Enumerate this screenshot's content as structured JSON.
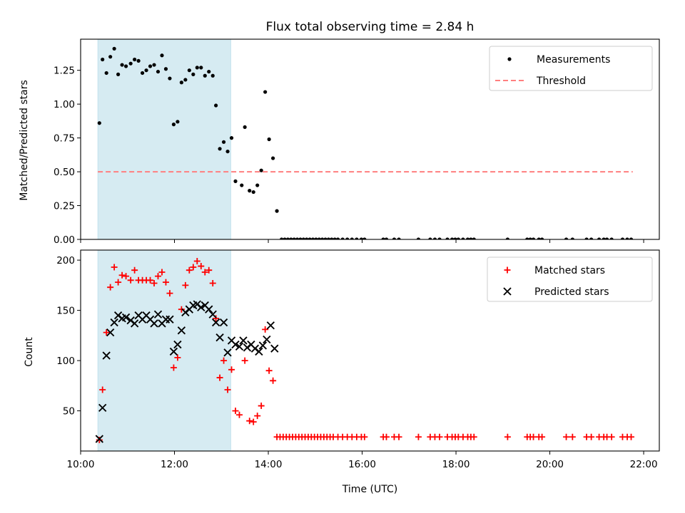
{
  "chart_data": [
    {
      "type": "scatter",
      "title": "Flux total observing time = 2.84 h",
      "xlabel": "",
      "ylabel": "Matched/Predicted stars",
      "xlim": [
        "10:00",
        "22:20"
      ],
      "ylim": [
        0,
        1.48
      ],
      "yticks": [
        "0.00",
        "0.25",
        "0.50",
        "0.75",
        "1.00",
        "1.25"
      ],
      "legend_position": "top-right",
      "highlight_span": {
        "from": "10:22",
        "to": "13:12",
        "color": "#add8e6"
      },
      "series": [
        {
          "name": "Measurements",
          "marker": "dot",
          "color": "#000000",
          "points": [
            [
              "10:24",
              0.86
            ],
            [
              "10:28",
              1.33
            ],
            [
              "10:33",
              1.23
            ],
            [
              "10:38",
              1.35
            ],
            [
              "10:43",
              1.41
            ],
            [
              "10:48",
              1.22
            ],
            [
              "10:53",
              1.29
            ],
            [
              "10:58",
              1.28
            ],
            [
              "11:04",
              1.3
            ],
            [
              "11:09",
              1.33
            ],
            [
              "11:14",
              1.32
            ],
            [
              "11:19",
              1.23
            ],
            [
              "11:24",
              1.25
            ],
            [
              "11:29",
              1.28
            ],
            [
              "11:34",
              1.29
            ],
            [
              "11:39",
              1.24
            ],
            [
              "11:44",
              1.36
            ],
            [
              "11:49",
              1.26
            ],
            [
              "11:54",
              1.19
            ],
            [
              "11:59",
              0.85
            ],
            [
              "12:04",
              0.87
            ],
            [
              "12:09",
              1.16
            ],
            [
              "12:14",
              1.18
            ],
            [
              "12:19",
              1.25
            ],
            [
              "12:24",
              1.22
            ],
            [
              "12:29",
              1.27
            ],
            [
              "12:34",
              1.27
            ],
            [
              "12:39",
              1.21
            ],
            [
              "12:44",
              1.24
            ],
            [
              "12:49",
              1.21
            ],
            [
              "12:53",
              0.99
            ],
            [
              "12:58",
              0.67
            ],
            [
              "13:03",
              0.72
            ],
            [
              "13:08",
              0.65
            ],
            [
              "13:13",
              0.75
            ],
            [
              "13:18",
              0.43
            ],
            [
              "13:26",
              0.4
            ],
            [
              "13:30",
              0.83
            ],
            [
              "13:36",
              0.36
            ],
            [
              "13:41",
              0.35
            ],
            [
              "13:46",
              0.4
            ],
            [
              "13:51",
              0.51
            ],
            [
              "13:56",
              1.09
            ],
            [
              "14:01",
              0.74
            ],
            [
              "14:06",
              0.6
            ],
            [
              "14:11",
              0.21
            ],
            [
              "14:17",
              0
            ],
            [
              "14:21",
              0
            ],
            [
              "14:25",
              0
            ],
            [
              "14:29",
              0
            ],
            [
              "14:33",
              0
            ],
            [
              "14:37",
              0
            ],
            [
              "14:41",
              0
            ],
            [
              "14:45",
              0
            ],
            [
              "14:49",
              0
            ],
            [
              "14:53",
              0
            ],
            [
              "14:57",
              0
            ],
            [
              "15:01",
              0
            ],
            [
              "15:05",
              0
            ],
            [
              "15:09",
              0
            ],
            [
              "15:13",
              0
            ],
            [
              "15:17",
              0
            ],
            [
              "15:21",
              0
            ],
            [
              "15:25",
              0
            ],
            [
              "15:29",
              0
            ],
            [
              "15:35",
              0
            ],
            [
              "15:41",
              0
            ],
            [
              "15:47",
              0
            ],
            [
              "15:53",
              0
            ],
            [
              "15:59",
              0
            ],
            [
              "16:03",
              0
            ],
            [
              "16:27",
              0
            ],
            [
              "16:31",
              0
            ],
            [
              "16:41",
              0
            ],
            [
              "16:47",
              0
            ],
            [
              "17:12",
              0
            ],
            [
              "17:27",
              0
            ],
            [
              "17:33",
              0
            ],
            [
              "17:39",
              0
            ],
            [
              "17:49",
              0
            ],
            [
              "17:55",
              0
            ],
            [
              "17:59",
              0
            ],
            [
              "18:03",
              0
            ],
            [
              "18:09",
              0
            ],
            [
              "18:15",
              0
            ],
            [
              "18:19",
              0
            ],
            [
              "18:23",
              0
            ],
            [
              "19:06",
              0
            ],
            [
              "19:31",
              0
            ],
            [
              "19:35",
              0
            ],
            [
              "19:39",
              0
            ],
            [
              "19:46",
              0
            ],
            [
              "19:50",
              0
            ],
            [
              "20:21",
              0
            ],
            [
              "20:29",
              0
            ],
            [
              "20:47",
              0
            ],
            [
              "20:53",
              0
            ],
            [
              "21:03",
              0
            ],
            [
              "21:09",
              0
            ],
            [
              "21:13",
              0
            ],
            [
              "21:19",
              0
            ],
            [
              "21:33",
              0
            ],
            [
              "21:39",
              0
            ],
            [
              "21:44",
              0
            ]
          ]
        },
        {
          "name": "Threshold",
          "marker": "dashed-line",
          "color": "#ff7f7f",
          "points": [
            [
              "10:22",
              0.5
            ],
            [
              "21:46",
              0.5
            ]
          ]
        }
      ]
    },
    {
      "type": "scatter",
      "title": "",
      "xlabel": "Time (UTC)",
      "ylabel": "Count",
      "xlim": [
        "10:00",
        "22:20"
      ],
      "ylim": [
        10,
        210
      ],
      "xticks": [
        "10:00",
        "12:00",
        "14:00",
        "16:00",
        "18:00",
        "20:00",
        "22:00"
      ],
      "yticks": [
        "50",
        "100",
        "150",
        "200"
      ],
      "legend_position": "top-right",
      "highlight_span": {
        "from": "10:22",
        "to": "13:12",
        "color": "#add8e6"
      },
      "series": [
        {
          "name": "Matched stars",
          "marker": "plus",
          "color": "#ff0000",
          "points": [
            [
              "10:24",
              21
            ],
            [
              "10:28",
              71
            ],
            [
              "10:33",
              128
            ],
            [
              "10:38",
              173
            ],
            [
              "10:43",
              193
            ],
            [
              "10:48",
              178
            ],
            [
              "10:53",
              185
            ],
            [
              "10:58",
              184
            ],
            [
              "11:04",
              180
            ],
            [
              "11:09",
              190
            ],
            [
              "11:14",
              180
            ],
            [
              "11:19",
              180
            ],
            [
              "11:24",
              180
            ],
            [
              "11:29",
              180
            ],
            [
              "11:34",
              177
            ],
            [
              "11:39",
              184
            ],
            [
              "11:44",
              188
            ],
            [
              "11:49",
              178
            ],
            [
              "11:54",
              167
            ],
            [
              "11:59",
              93
            ],
            [
              "12:04",
              103
            ],
            [
              "12:09",
              151
            ],
            [
              "12:14",
              175
            ],
            [
              "12:19",
              190
            ],
            [
              "12:24",
              193
            ],
            [
              "12:29",
              199
            ],
            [
              "12:34",
              194
            ],
            [
              "12:39",
              188
            ],
            [
              "12:44",
              190
            ],
            [
              "12:49",
              177
            ],
            [
              "12:53",
              142
            ],
            [
              "12:58",
              83
            ],
            [
              "13:03",
              100
            ],
            [
              "13:08",
              71
            ],
            [
              "13:13",
              91
            ],
            [
              "13:18",
              50
            ],
            [
              "13:23",
              46
            ],
            [
              "13:30",
              100
            ],
            [
              "13:36",
              40
            ],
            [
              "13:41",
              39
            ],
            [
              "13:46",
              45
            ],
            [
              "13:51",
              55
            ],
            [
              "13:56",
              131
            ],
            [
              "14:01",
              90
            ],
            [
              "14:06",
              80
            ],
            [
              "14:11",
              24
            ],
            [
              "14:15",
              24
            ],
            [
              "14:19",
              24
            ],
            [
              "14:23",
              24
            ],
            [
              "14:27",
              24
            ],
            [
              "14:31",
              24
            ],
            [
              "14:35",
              24
            ],
            [
              "14:39",
              24
            ],
            [
              "14:43",
              24
            ],
            [
              "14:47",
              24
            ],
            [
              "14:51",
              24
            ],
            [
              "14:55",
              24
            ],
            [
              "14:59",
              24
            ],
            [
              "15:03",
              24
            ],
            [
              "15:07",
              24
            ],
            [
              "15:11",
              24
            ],
            [
              "15:15",
              24
            ],
            [
              "15:19",
              24
            ],
            [
              "15:23",
              24
            ],
            [
              "15:29",
              24
            ],
            [
              "15:35",
              24
            ],
            [
              "15:41",
              24
            ],
            [
              "15:47",
              24
            ],
            [
              "15:53",
              24
            ],
            [
              "15:59",
              24
            ],
            [
              "16:03",
              24
            ],
            [
              "16:27",
              24
            ],
            [
              "16:31",
              24
            ],
            [
              "16:41",
              24
            ],
            [
              "16:47",
              24
            ],
            [
              "17:12",
              24
            ],
            [
              "17:27",
              24
            ],
            [
              "17:33",
              24
            ],
            [
              "17:39",
              24
            ],
            [
              "17:49",
              24
            ],
            [
              "17:55",
              24
            ],
            [
              "17:59",
              24
            ],
            [
              "18:03",
              24
            ],
            [
              "18:09",
              24
            ],
            [
              "18:15",
              24
            ],
            [
              "18:19",
              24
            ],
            [
              "18:23",
              24
            ],
            [
              "19:06",
              24
            ],
            [
              "19:31",
              24
            ],
            [
              "19:35",
              24
            ],
            [
              "19:39",
              24
            ],
            [
              "19:46",
              24
            ],
            [
              "19:50",
              24
            ],
            [
              "20:21",
              24
            ],
            [
              "20:29",
              24
            ],
            [
              "20:47",
              24
            ],
            [
              "20:53",
              24
            ],
            [
              "21:03",
              24
            ],
            [
              "21:09",
              24
            ],
            [
              "21:13",
              24
            ],
            [
              "21:19",
              24
            ],
            [
              "21:33",
              24
            ],
            [
              "21:39",
              24
            ],
            [
              "21:44",
              24
            ]
          ]
        },
        {
          "name": "Predicted stars",
          "marker": "x",
          "color": "#000000",
          "points": [
            [
              "10:24",
              22
            ],
            [
              "10:28",
              53
            ],
            [
              "10:33",
              105
            ],
            [
              "10:38",
              128
            ],
            [
              "10:43",
              138
            ],
            [
              "10:48",
              145
            ],
            [
              "10:53",
              142
            ],
            [
              "10:58",
              143
            ],
            [
              "11:04",
              140
            ],
            [
              "11:09",
              137
            ],
            [
              "11:14",
              145
            ],
            [
              "11:19",
              141
            ],
            [
              "11:24",
              145
            ],
            [
              "11:29",
              141
            ],
            [
              "11:34",
              137
            ],
            [
              "11:39",
              146
            ],
            [
              "11:44",
              137
            ],
            [
              "11:49",
              141
            ],
            [
              "11:54",
              141
            ],
            [
              "11:59",
              109
            ],
            [
              "12:04",
              116
            ],
            [
              "12:09",
              130
            ],
            [
              "12:14",
              148
            ],
            [
              "12:19",
              151
            ],
            [
              "12:24",
              155
            ],
            [
              "12:29",
              156
            ],
            [
              "12:34",
              153
            ],
            [
              "12:39",
              155
            ],
            [
              "12:44",
              151
            ],
            [
              "12:49",
              146
            ],
            [
              "12:53",
              138
            ],
            [
              "12:58",
              123
            ],
            [
              "13:03",
              138
            ],
            [
              "13:08",
              108
            ],
            [
              "13:13",
              120
            ],
            [
              "13:18",
              116
            ],
            [
              "13:23",
              114
            ],
            [
              "13:28",
              120
            ],
            [
              "13:33",
              113
            ],
            [
              "13:38",
              116
            ],
            [
              "13:43",
              112
            ],
            [
              "13:48",
              109
            ],
            [
              "13:53",
              115
            ],
            [
              "13:58",
              121
            ],
            [
              "14:03",
              135
            ],
            [
              "14:08",
              112
            ]
          ]
        }
      ]
    }
  ]
}
